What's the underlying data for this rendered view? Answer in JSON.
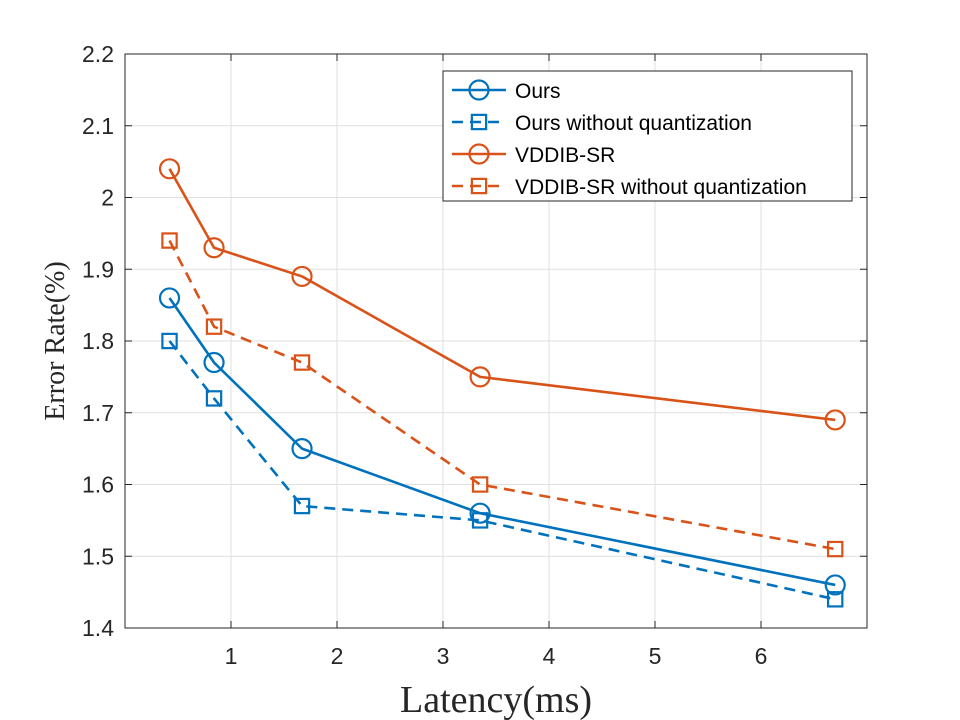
{
  "chart_data": {
    "type": "line",
    "title": "",
    "xlabel": "Latency(ms)",
    "ylabel": "Error Rate(%)",
    "xlim": [
      0,
      7
    ],
    "ylim": [
      1.4,
      2.2
    ],
    "xticks": [
      1,
      2,
      3,
      4,
      5,
      6
    ],
    "xtick_labels": [
      "1",
      "2",
      "3",
      "4",
      "5",
      "6"
    ],
    "yticks": [
      1.4,
      1.5,
      1.6,
      1.7,
      1.8,
      1.9,
      2.0,
      2.1,
      2.2
    ],
    "ytick_labels": [
      "1.4",
      "1.5",
      "1.6",
      "1.7",
      "1.8",
      "1.9",
      "2",
      "2.1",
      "2.2"
    ],
    "grid": true,
    "legend_position": "top-right",
    "x": [
      0.42,
      0.84,
      1.67,
      3.35,
      6.7
    ],
    "series": [
      {
        "name": "Ours",
        "color": "#0072BD",
        "marker": "circle",
        "dashed": false,
        "values": [
          1.86,
          1.77,
          1.65,
          1.56,
          1.46
        ]
      },
      {
        "name": "Ours without quantization",
        "color": "#0072BD",
        "marker": "square",
        "dashed": true,
        "values": [
          1.8,
          1.72,
          1.57,
          1.55,
          1.44
        ]
      },
      {
        "name": "VDDIB-SR",
        "color": "#D95319",
        "marker": "circle",
        "dashed": false,
        "values": [
          2.04,
          1.93,
          1.89,
          1.75,
          1.69
        ]
      },
      {
        "name": "VDDIB-SR without quantization",
        "color": "#D95319",
        "marker": "square",
        "dashed": true,
        "values": [
          1.94,
          1.82,
          1.77,
          1.6,
          1.51
        ]
      }
    ]
  }
}
